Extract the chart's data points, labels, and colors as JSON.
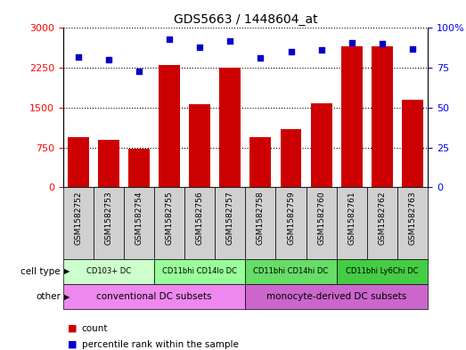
{
  "title": "GDS5663 / 1448604_at",
  "samples": [
    "GSM1582752",
    "GSM1582753",
    "GSM1582754",
    "GSM1582755",
    "GSM1582756",
    "GSM1582757",
    "GSM1582758",
    "GSM1582759",
    "GSM1582760",
    "GSM1582761",
    "GSM1582762",
    "GSM1582763"
  ],
  "counts": [
    950,
    900,
    730,
    2310,
    1560,
    2250,
    950,
    1100,
    1580,
    2660,
    2650,
    1650
  ],
  "percentiles": [
    82,
    80,
    73,
    93,
    88,
    92,
    81,
    85,
    86,
    91,
    90,
    87
  ],
  "ylim_left": [
    0,
    3000
  ],
  "ylim_right": [
    0,
    100
  ],
  "yticks_left": [
    0,
    750,
    1500,
    2250,
    3000
  ],
  "yticks_right": [
    0,
    25,
    50,
    75,
    100
  ],
  "bar_color": "#cc0000",
  "dot_color": "#0000cc",
  "cell_type_groups": [
    {
      "label": "CD103+ DC",
      "start": 0,
      "end": 3,
      "color": "#ccffcc"
    },
    {
      "label": "CD11bhi CD14lo DC",
      "start": 3,
      "end": 6,
      "color": "#99ff99"
    },
    {
      "label": "CD11bhi CD14hi DC",
      "start": 6,
      "end": 9,
      "color": "#66dd66"
    },
    {
      "label": "CD11bhi Ly6Chi DC",
      "start": 9,
      "end": 12,
      "color": "#44cc44"
    }
  ],
  "other_groups": [
    {
      "label": "conventional DC subsets",
      "start": 0,
      "end": 6,
      "color": "#ee88ee"
    },
    {
      "label": "monocyte-derived DC subsets",
      "start": 6,
      "end": 12,
      "color": "#cc66cc"
    }
  ],
  "cell_type_label": "cell type",
  "other_label": "other",
  "legend_count_label": "count",
  "legend_percentile_label": "percentile rank within the sample",
  "background_color": "#ffffff",
  "sample_bg_color": "#d0d0d0"
}
